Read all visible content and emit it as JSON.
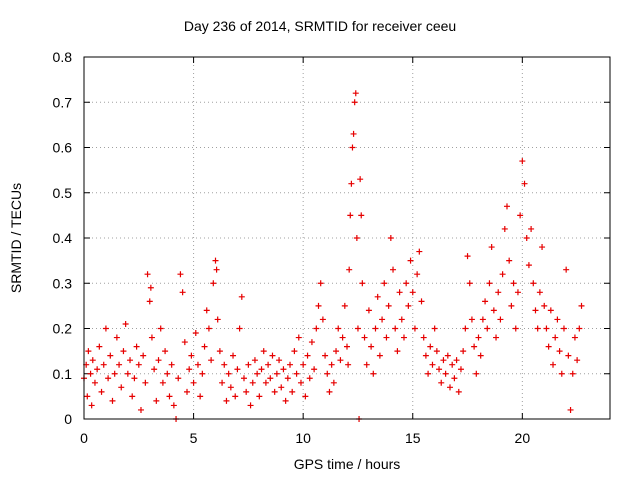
{
  "chart_data": {
    "type": "scatter",
    "title": "Day 236 of 2014, SRMTID for receiver ceeu",
    "xlabel": "GPS time / hours",
    "ylabel": "SRMTID / TECUs",
    "xlim": [
      0,
      24
    ],
    "ylim": [
      0,
      0.8
    ],
    "xticks": [
      0,
      5,
      10,
      15,
      20
    ],
    "xtick_labels": [
      "0",
      "5",
      "10",
      "15",
      "20"
    ],
    "yticks": [
      0,
      0.1,
      0.2,
      0.3,
      0.4,
      0.5,
      0.6,
      0.7,
      0.8
    ],
    "ytick_labels": [
      "0",
      "0.1",
      "0.2",
      "0.3",
      "0.4",
      "0.5",
      "0.6",
      "0.7",
      "0.8"
    ],
    "grid": true,
    "marker": "plus",
    "series": [
      {
        "name": "SRMTID",
        "color": "#e60000",
        "points": [
          [
            0.0,
            0.09
          ],
          [
            0.1,
            0.12
          ],
          [
            0.15,
            0.05
          ],
          [
            0.2,
            0.15
          ],
          [
            0.3,
            0.1
          ],
          [
            0.35,
            0.03
          ],
          [
            0.4,
            0.13
          ],
          [
            0.5,
            0.08
          ],
          [
            0.6,
            0.11
          ],
          [
            0.7,
            0.16
          ],
          [
            0.8,
            0.06
          ],
          [
            0.9,
            0.12
          ],
          [
            1.0,
            0.2
          ],
          [
            1.1,
            0.09
          ],
          [
            1.2,
            0.14
          ],
          [
            1.3,
            0.04
          ],
          [
            1.4,
            0.1
          ],
          [
            1.5,
            0.18
          ],
          [
            1.6,
            0.12
          ],
          [
            1.7,
            0.07
          ],
          [
            1.8,
            0.15
          ],
          [
            1.9,
            0.21
          ],
          [
            2.0,
            0.1
          ],
          [
            2.1,
            0.13
          ],
          [
            2.2,
            0.05
          ],
          [
            2.3,
            0.09
          ],
          [
            2.4,
            0.16
          ],
          [
            2.5,
            0.12
          ],
          [
            2.6,
            0.02
          ],
          [
            2.7,
            0.14
          ],
          [
            2.8,
            0.08
          ],
          [
            2.9,
            0.32
          ],
          [
            3.0,
            0.26
          ],
          [
            3.05,
            0.29
          ],
          [
            3.1,
            0.18
          ],
          [
            3.2,
            0.11
          ],
          [
            3.3,
            0.04
          ],
          [
            3.4,
            0.13
          ],
          [
            3.5,
            0.2
          ],
          [
            3.6,
            0.08
          ],
          [
            3.7,
            0.15
          ],
          [
            3.8,
            0.1
          ],
          [
            3.9,
            0.05
          ],
          [
            4.0,
            0.12
          ],
          [
            4.1,
            0.03
          ],
          [
            4.2,
            0.0
          ],
          [
            4.3,
            0.09
          ],
          [
            4.4,
            0.32
          ],
          [
            4.5,
            0.28
          ],
          [
            4.6,
            0.17
          ],
          [
            4.7,
            0.06
          ],
          [
            4.8,
            0.11
          ],
          [
            4.9,
            0.14
          ],
          [
            5.0,
            0.08
          ],
          [
            5.1,
            0.19
          ],
          [
            5.2,
            0.12
          ],
          [
            5.3,
            0.05
          ],
          [
            5.4,
            0.1
          ],
          [
            5.5,
            0.16
          ],
          [
            5.6,
            0.24
          ],
          [
            5.7,
            0.2
          ],
          [
            5.8,
            0.13
          ],
          [
            5.9,
            0.3
          ],
          [
            6.0,
            0.35
          ],
          [
            6.05,
            0.33
          ],
          [
            6.1,
            0.22
          ],
          [
            6.2,
            0.15
          ],
          [
            6.3,
            0.08
          ],
          [
            6.4,
            0.12
          ],
          [
            6.5,
            0.04
          ],
          [
            6.6,
            0.1
          ],
          [
            6.7,
            0.07
          ],
          [
            6.8,
            0.14
          ],
          [
            6.9,
            0.05
          ],
          [
            7.0,
            0.11
          ],
          [
            7.1,
            0.2
          ],
          [
            7.2,
            0.27
          ],
          [
            7.3,
            0.09
          ],
          [
            7.4,
            0.06
          ],
          [
            7.5,
            0.12
          ],
          [
            7.6,
            0.03
          ],
          [
            7.7,
            0.08
          ],
          [
            7.8,
            0.13
          ],
          [
            7.9,
            0.1
          ],
          [
            8.0,
            0.05
          ],
          [
            8.1,
            0.11
          ],
          [
            8.2,
            0.15
          ],
          [
            8.3,
            0.08
          ],
          [
            8.4,
            0.12
          ],
          [
            8.5,
            0.09
          ],
          [
            8.6,
            0.14
          ],
          [
            8.7,
            0.06
          ],
          [
            8.8,
            0.1
          ],
          [
            8.9,
            0.13
          ],
          [
            9.0,
            0.07
          ],
          [
            9.1,
            0.11
          ],
          [
            9.2,
            0.04
          ],
          [
            9.3,
            0.09
          ],
          [
            9.4,
            0.12
          ],
          [
            9.5,
            0.06
          ],
          [
            9.6,
            0.15
          ],
          [
            9.7,
            0.1
          ],
          [
            9.8,
            0.18
          ],
          [
            9.9,
            0.08
          ],
          [
            10.0,
            0.12
          ],
          [
            10.1,
            0.05
          ],
          [
            10.2,
            0.14
          ],
          [
            10.3,
            0.09
          ],
          [
            10.4,
            0.17
          ],
          [
            10.5,
            0.11
          ],
          [
            10.6,
            0.2
          ],
          [
            10.7,
            0.25
          ],
          [
            10.8,
            0.3
          ],
          [
            10.9,
            0.22
          ],
          [
            11.0,
            0.14
          ],
          [
            11.1,
            0.1
          ],
          [
            11.2,
            0.06
          ],
          [
            11.3,
            0.12
          ],
          [
            11.4,
            0.08
          ],
          [
            11.5,
            0.15
          ],
          [
            11.6,
            0.2
          ],
          [
            11.7,
            0.13
          ],
          [
            11.8,
            0.18
          ],
          [
            11.9,
            0.25
          ],
          [
            12.0,
            0.16
          ],
          [
            12.05,
            0.12
          ],
          [
            12.1,
            0.33
          ],
          [
            12.15,
            0.45
          ],
          [
            12.2,
            0.52
          ],
          [
            12.25,
            0.6
          ],
          [
            12.3,
            0.63
          ],
          [
            12.35,
            0.7
          ],
          [
            12.4,
            0.72
          ],
          [
            12.45,
            0.4
          ],
          [
            12.5,
            0.2
          ],
          [
            12.55,
            0.0
          ],
          [
            12.6,
            0.53
          ],
          [
            12.65,
            0.45
          ],
          [
            12.7,
            0.3
          ],
          [
            12.8,
            0.18
          ],
          [
            12.9,
            0.12
          ],
          [
            13.0,
            0.24
          ],
          [
            13.1,
            0.16
          ],
          [
            13.2,
            0.1
          ],
          [
            13.3,
            0.2
          ],
          [
            13.4,
            0.27
          ],
          [
            13.5,
            0.14
          ],
          [
            13.6,
            0.22
          ],
          [
            13.7,
            0.3
          ],
          [
            13.8,
            0.18
          ],
          [
            13.9,
            0.25
          ],
          [
            14.0,
            0.4
          ],
          [
            14.1,
            0.33
          ],
          [
            14.2,
            0.2
          ],
          [
            14.3,
            0.15
          ],
          [
            14.4,
            0.28
          ],
          [
            14.5,
            0.22
          ],
          [
            14.6,
            0.18
          ],
          [
            14.7,
            0.3
          ],
          [
            14.8,
            0.25
          ],
          [
            14.9,
            0.35
          ],
          [
            15.0,
            0.28
          ],
          [
            15.1,
            0.2
          ],
          [
            15.2,
            0.32
          ],
          [
            15.3,
            0.37
          ],
          [
            15.4,
            0.26
          ],
          [
            15.5,
            0.18
          ],
          [
            15.6,
            0.14
          ],
          [
            15.7,
            0.1
          ],
          [
            15.8,
            0.16
          ],
          [
            15.9,
            0.12
          ],
          [
            16.0,
            0.2
          ],
          [
            16.1,
            0.15
          ],
          [
            16.2,
            0.11
          ],
          [
            16.3,
            0.08
          ],
          [
            16.4,
            0.13
          ],
          [
            16.5,
            0.1
          ],
          [
            16.6,
            0.14
          ],
          [
            16.7,
            0.07
          ],
          [
            16.8,
            0.12
          ],
          [
            16.9,
            0.09
          ],
          [
            17.0,
            0.13
          ],
          [
            17.1,
            0.06
          ],
          [
            17.2,
            0.11
          ],
          [
            17.3,
            0.15
          ],
          [
            17.4,
            0.2
          ],
          [
            17.5,
            0.36
          ],
          [
            17.6,
            0.3
          ],
          [
            17.7,
            0.22
          ],
          [
            17.8,
            0.16
          ],
          [
            17.9,
            0.1
          ],
          [
            18.0,
            0.18
          ],
          [
            18.1,
            0.14
          ],
          [
            18.2,
            0.22
          ],
          [
            18.3,
            0.26
          ],
          [
            18.4,
            0.2
          ],
          [
            18.5,
            0.3
          ],
          [
            18.6,
            0.38
          ],
          [
            18.7,
            0.24
          ],
          [
            18.8,
            0.18
          ],
          [
            18.9,
            0.28
          ],
          [
            19.0,
            0.22
          ],
          [
            19.1,
            0.32
          ],
          [
            19.2,
            0.42
          ],
          [
            19.3,
            0.47
          ],
          [
            19.4,
            0.35
          ],
          [
            19.5,
            0.25
          ],
          [
            19.6,
            0.3
          ],
          [
            19.7,
            0.2
          ],
          [
            19.8,
            0.28
          ],
          [
            19.9,
            0.45
          ],
          [
            20.0,
            0.57
          ],
          [
            20.1,
            0.52
          ],
          [
            20.2,
            0.4
          ],
          [
            20.3,
            0.34
          ],
          [
            20.4,
            0.42
          ],
          [
            20.5,
            0.3
          ],
          [
            20.6,
            0.24
          ],
          [
            20.7,
            0.2
          ],
          [
            20.8,
            0.28
          ],
          [
            20.9,
            0.38
          ],
          [
            21.0,
            0.25
          ],
          [
            21.1,
            0.2
          ],
          [
            21.2,
            0.16
          ],
          [
            21.3,
            0.24
          ],
          [
            21.4,
            0.12
          ],
          [
            21.5,
            0.18
          ],
          [
            21.6,
            0.22
          ],
          [
            21.7,
            0.15
          ],
          [
            21.8,
            0.1
          ],
          [
            21.9,
            0.2
          ],
          [
            22.0,
            0.33
          ],
          [
            22.1,
            0.14
          ],
          [
            22.2,
            0.02
          ],
          [
            22.3,
            0.1
          ],
          [
            22.4,
            0.18
          ],
          [
            22.5,
            0.13
          ],
          [
            22.6,
            0.2
          ],
          [
            22.7,
            0.25
          ]
        ]
      }
    ]
  }
}
